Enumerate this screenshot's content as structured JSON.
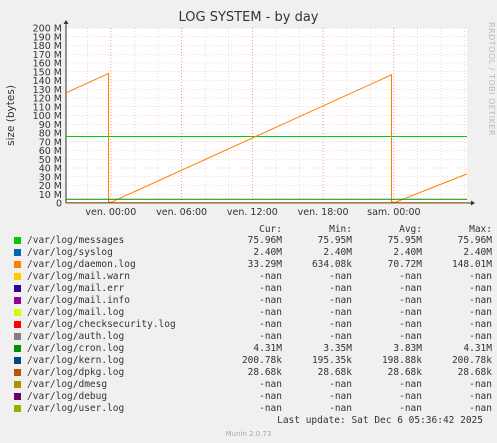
{
  "side_text": "RRDTOOL / TOBI OETIKER",
  "chart_data": {
    "type": "line",
    "title": "LOG SYSTEM - by day",
    "ylabel": "size (bytes)",
    "ylim": [
      0,
      200
    ],
    "y_ticks": [
      "0",
      "10 M",
      "20 M",
      "30 M",
      "40 M",
      "50 M",
      "60 M",
      "70 M",
      "80 M",
      "90 M",
      "100 M",
      "110 M",
      "120 M",
      "130 M",
      "140 M",
      "150 M",
      "160 M",
      "170 M",
      "180 M",
      "190 M",
      "200 M"
    ],
    "x_ticks": [
      "ven. 00:00",
      "ven. 06:00",
      "ven. 12:00",
      "ven. 18:00",
      "sam. 00:00"
    ],
    "x_hours": [
      0,
      6,
      12,
      18,
      24
    ],
    "xlim": [
      -3.8,
      30.2
    ],
    "grid": true,
    "series": [
      {
        "name": "/var/log/messages",
        "color": "#00cc00",
        "points": [
          [
            -3.8,
            75.95
          ],
          [
            30.2,
            75.96
          ]
        ]
      },
      {
        "name": "/var/log/daemon.log",
        "color": "#ff8000",
        "points": [
          [
            -3.8,
            126
          ],
          [
            -0.2,
            148.01
          ],
          [
            -0.2,
            1.5
          ],
          [
            0.0,
            0.63
          ],
          [
            23.8,
            146.5
          ],
          [
            23.8,
            1.2
          ],
          [
            24.1,
            0.63
          ],
          [
            30.2,
            33.29
          ]
        ]
      },
      {
        "name": "/var/log/cron.log",
        "color": "#008f00",
        "points": [
          [
            -3.8,
            4.31
          ],
          [
            30.2,
            4.31
          ]
        ]
      },
      {
        "name": "/var/log/kern.log",
        "color": "#00487d",
        "points": [
          [
            -3.8,
            0.2
          ],
          [
            30.2,
            0.2
          ]
        ]
      },
      {
        "name": "/var/log/dpkg.log",
        "color": "#b35a00",
        "points": [
          [
            -3.8,
            0.03
          ],
          [
            30.2,
            0.03
          ]
        ]
      }
    ]
  },
  "legend": {
    "headers": [
      "Cur:",
      "Min:",
      "Avg:",
      "Max:"
    ],
    "rows": [
      {
        "name": "/var/log/messages",
        "color": "#00cc00",
        "cur": "75.96M",
        "min": "75.95M",
        "avg": "75.95M",
        "max": "75.96M"
      },
      {
        "name": "/var/log/syslog",
        "color": "#0066b3",
        "cur": "2.40M",
        "min": "2.40M",
        "avg": "2.40M",
        "max": "2.40M"
      },
      {
        "name": "/var/log/daemon.log",
        "color": "#ff8000",
        "cur": "33.29M",
        "min": "634.08k",
        "avg": "70.72M",
        "max": "148.01M"
      },
      {
        "name": "/var/log/mail.warn",
        "color": "#ffcc00",
        "cur": "-nan",
        "min": "-nan",
        "avg": "-nan",
        "max": "-nan"
      },
      {
        "name": "/var/log/mail.err",
        "color": "#330099",
        "cur": "-nan",
        "min": "-nan",
        "avg": "-nan",
        "max": "-nan"
      },
      {
        "name": "/var/log/mail.info",
        "color": "#990099",
        "cur": "-nan",
        "min": "-nan",
        "avg": "-nan",
        "max": "-nan"
      },
      {
        "name": "/var/log/mail.log",
        "color": "#ccff00",
        "cur": "-nan",
        "min": "-nan",
        "avg": "-nan",
        "max": "-nan"
      },
      {
        "name": "/var/log/checksecurity.log",
        "color": "#ff0000",
        "cur": "-nan",
        "min": "-nan",
        "avg": "-nan",
        "max": "-nan"
      },
      {
        "name": "/var/log/auth.log",
        "color": "#808080",
        "cur": "-nan",
        "min": "-nan",
        "avg": "-nan",
        "max": "-nan"
      },
      {
        "name": "/var/log/cron.log",
        "color": "#008f00",
        "cur": "4.31M",
        "min": "3.35M",
        "avg": "3.83M",
        "max": "4.31M"
      },
      {
        "name": "/var/log/kern.log",
        "color": "#00487d",
        "cur": "200.78k",
        "min": "195.35k",
        "avg": "198.88k",
        "max": "200.78k"
      },
      {
        "name": "/var/log/dpkg.log",
        "color": "#b35a00",
        "cur": "28.68k",
        "min": "28.68k",
        "avg": "28.68k",
        "max": "28.68k"
      },
      {
        "name": "/var/log/dmesg",
        "color": "#b38f00",
        "cur": "-nan",
        "min": "-nan",
        "avg": "-nan",
        "max": "-nan"
      },
      {
        "name": "/var/log/debug",
        "color": "#6b006b",
        "cur": "-nan",
        "min": "-nan",
        "avg": "-nan",
        "max": "-nan"
      },
      {
        "name": "/var/log/user.log",
        "color": "#8fb300",
        "cur": "-nan",
        "min": "-nan",
        "avg": "-nan",
        "max": "-nan"
      }
    ]
  },
  "last_update": "Last update: Sat Dec  6 05:36:42 2025",
  "footer": "Munin 2.0.73"
}
